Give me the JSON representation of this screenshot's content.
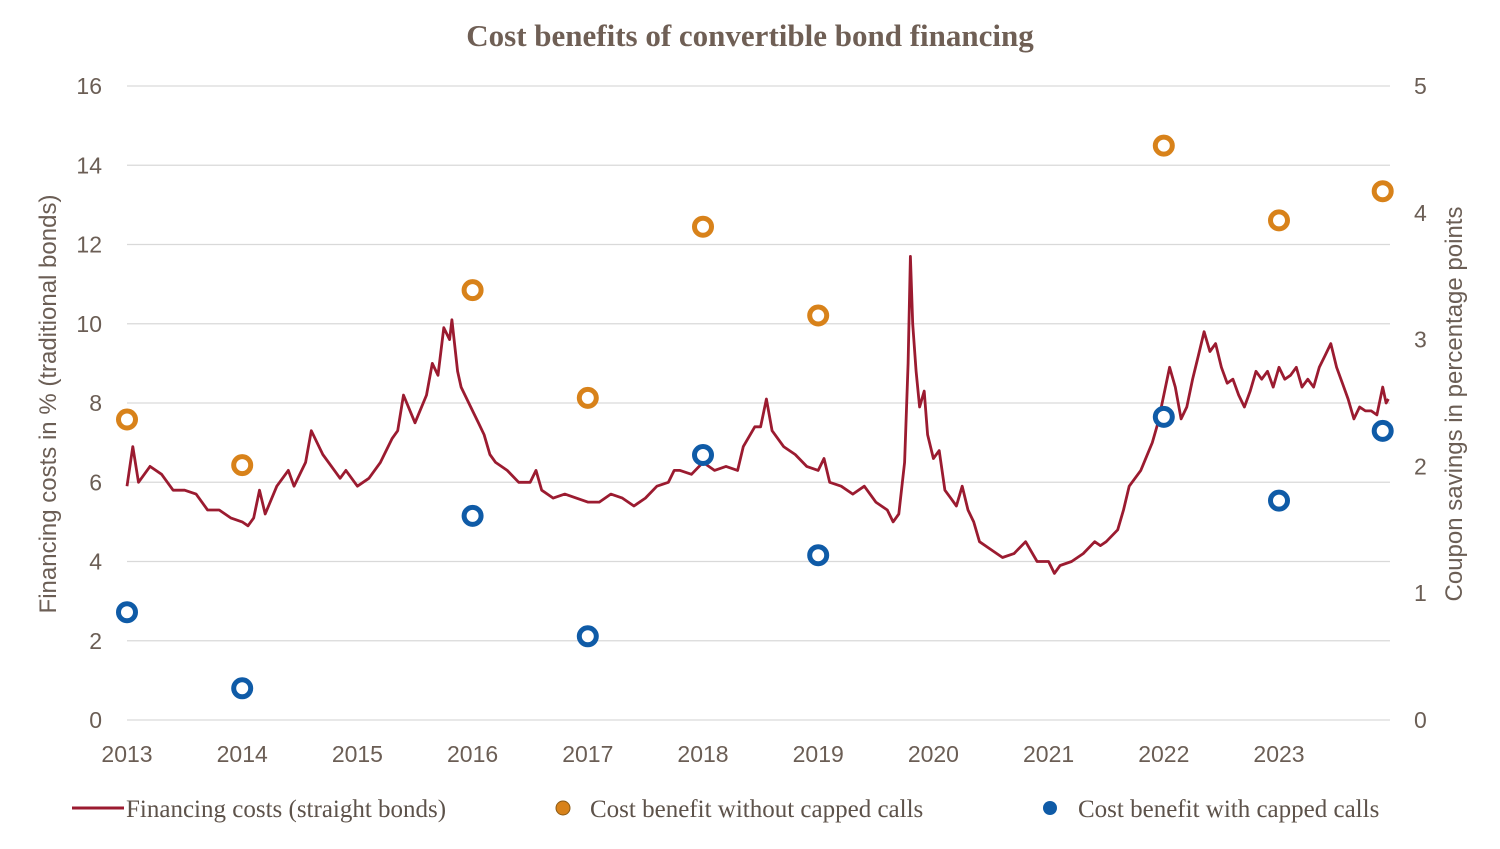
{
  "chart_data": {
    "type": "line",
    "title": "Cost benefits of convertible bond financing",
    "x_ticks": [
      "2013",
      "2014",
      "2015",
      "2016",
      "2017",
      "2018",
      "2019",
      "2020",
      "2021",
      "2022",
      "2023"
    ],
    "x_range": [
      2013,
      2024
    ],
    "y_left": {
      "label": "Financing costs in % (traditional bonds)",
      "range": [
        0,
        16
      ],
      "ticks": [
        "0",
        "2",
        "4",
        "6",
        "8",
        "10",
        "12",
        "14",
        "16"
      ]
    },
    "y_right": {
      "label": "Coupon savings in percentage points",
      "range": [
        0,
        5
      ],
      "ticks": [
        "0",
        "1",
        "2",
        "3",
        "4",
        "5"
      ]
    },
    "grid": true,
    "legend_position": "bottom",
    "series": [
      {
        "name": "Financing costs (straight bonds)",
        "kind": "line",
        "axis": "left",
        "color": "#9b1b30",
        "points": [
          [
            2013.0,
            5.9
          ],
          [
            2013.05,
            6.9
          ],
          [
            2013.1,
            6.0
          ],
          [
            2013.2,
            6.4
          ],
          [
            2013.3,
            6.2
          ],
          [
            2013.4,
            5.8
          ],
          [
            2013.5,
            5.8
          ],
          [
            2013.6,
            5.7
          ],
          [
            2013.7,
            5.3
          ],
          [
            2013.8,
            5.3
          ],
          [
            2013.9,
            5.1
          ],
          [
            2014.0,
            5.0
          ],
          [
            2014.05,
            4.9
          ],
          [
            2014.1,
            5.1
          ],
          [
            2014.15,
            5.8
          ],
          [
            2014.2,
            5.2
          ],
          [
            2014.3,
            5.9
          ],
          [
            2014.4,
            6.3
          ],
          [
            2014.45,
            5.9
          ],
          [
            2014.55,
            6.5
          ],
          [
            2014.6,
            7.3
          ],
          [
            2014.7,
            6.7
          ],
          [
            2014.8,
            6.3
          ],
          [
            2014.85,
            6.1
          ],
          [
            2014.9,
            6.3
          ],
          [
            2015.0,
            5.9
          ],
          [
            2015.1,
            6.1
          ],
          [
            2015.2,
            6.5
          ],
          [
            2015.3,
            7.1
          ],
          [
            2015.35,
            7.3
          ],
          [
            2015.4,
            8.2
          ],
          [
            2015.5,
            7.5
          ],
          [
            2015.6,
            8.2
          ],
          [
            2015.65,
            9.0
          ],
          [
            2015.7,
            8.7
          ],
          [
            2015.75,
            9.9
          ],
          [
            2015.8,
            9.6
          ],
          [
            2015.82,
            10.1
          ],
          [
            2015.87,
            8.8
          ],
          [
            2015.9,
            8.4
          ],
          [
            2016.0,
            7.8
          ],
          [
            2016.05,
            7.5
          ],
          [
            2016.1,
            7.2
          ],
          [
            2016.15,
            6.7
          ],
          [
            2016.2,
            6.5
          ],
          [
            2016.3,
            6.3
          ],
          [
            2016.4,
            6.0
          ],
          [
            2016.5,
            6.0
          ],
          [
            2016.55,
            6.3
          ],
          [
            2016.6,
            5.8
          ],
          [
            2016.7,
            5.6
          ],
          [
            2016.8,
            5.7
          ],
          [
            2016.9,
            5.6
          ],
          [
            2017.0,
            5.5
          ],
          [
            2017.1,
            5.5
          ],
          [
            2017.2,
            5.7
          ],
          [
            2017.3,
            5.6
          ],
          [
            2017.4,
            5.4
          ],
          [
            2017.5,
            5.6
          ],
          [
            2017.6,
            5.9
          ],
          [
            2017.7,
            6.0
          ],
          [
            2017.75,
            6.3
          ],
          [
            2017.8,
            6.3
          ],
          [
            2017.9,
            6.2
          ],
          [
            2018.0,
            6.5
          ],
          [
            2018.05,
            6.4
          ],
          [
            2018.1,
            6.3
          ],
          [
            2018.2,
            6.4
          ],
          [
            2018.3,
            6.3
          ],
          [
            2018.35,
            6.9
          ],
          [
            2018.45,
            7.4
          ],
          [
            2018.5,
            7.4
          ],
          [
            2018.55,
            8.1
          ],
          [
            2018.6,
            7.3
          ],
          [
            2018.7,
            6.9
          ],
          [
            2018.8,
            6.7
          ],
          [
            2018.9,
            6.4
          ],
          [
            2019.0,
            6.3
          ],
          [
            2019.05,
            6.6
          ],
          [
            2019.1,
            6.0
          ],
          [
            2019.2,
            5.9
          ],
          [
            2019.3,
            5.7
          ],
          [
            2019.4,
            5.9
          ],
          [
            2019.5,
            5.5
          ],
          [
            2019.6,
            5.3
          ],
          [
            2019.65,
            5.0
          ],
          [
            2019.7,
            5.2
          ],
          [
            2019.75,
            6.5
          ],
          [
            2019.78,
            9.0
          ],
          [
            2019.8,
            11.7
          ],
          [
            2019.82,
            10.0
          ],
          [
            2019.85,
            8.8
          ],
          [
            2019.88,
            7.9
          ],
          [
            2019.92,
            8.3
          ],
          [
            2019.95,
            7.2
          ],
          [
            2020.0,
            6.6
          ],
          [
            2020.05,
            6.8
          ],
          [
            2020.1,
            5.8
          ],
          [
            2020.15,
            5.6
          ],
          [
            2020.2,
            5.4
          ],
          [
            2020.25,
            5.9
          ],
          [
            2020.3,
            5.3
          ],
          [
            2020.35,
            5.0
          ],
          [
            2020.4,
            4.5
          ],
          [
            2020.5,
            4.3
          ],
          [
            2020.6,
            4.1
          ],
          [
            2020.7,
            4.2
          ],
          [
            2020.8,
            4.5
          ],
          [
            2020.9,
            4.0
          ],
          [
            2021.0,
            4.0
          ],
          [
            2021.05,
            3.7
          ],
          [
            2021.1,
            3.9
          ],
          [
            2021.2,
            4.0
          ],
          [
            2021.3,
            4.2
          ],
          [
            2021.4,
            4.5
          ],
          [
            2021.45,
            4.4
          ],
          [
            2021.5,
            4.5
          ],
          [
            2021.6,
            4.8
          ],
          [
            2021.65,
            5.3
          ],
          [
            2021.7,
            5.9
          ],
          [
            2021.8,
            6.3
          ],
          [
            2021.9,
            7.0
          ],
          [
            2021.95,
            7.5
          ],
          [
            2022.0,
            8.2
          ],
          [
            2022.05,
            8.9
          ],
          [
            2022.1,
            8.4
          ],
          [
            2022.15,
            7.6
          ],
          [
            2022.2,
            7.9
          ],
          [
            2022.25,
            8.6
          ],
          [
            2022.3,
            9.2
          ],
          [
            2022.35,
            9.8
          ],
          [
            2022.4,
            9.3
          ],
          [
            2022.45,
            9.5
          ],
          [
            2022.5,
            8.9
          ],
          [
            2022.55,
            8.5
          ],
          [
            2022.6,
            8.6
          ],
          [
            2022.65,
            8.2
          ],
          [
            2022.7,
            7.9
          ],
          [
            2022.75,
            8.3
          ],
          [
            2022.8,
            8.8
          ],
          [
            2022.85,
            8.6
          ],
          [
            2022.9,
            8.8
          ],
          [
            2022.95,
            8.4
          ],
          [
            2023.0,
            8.9
          ],
          [
            2023.05,
            8.6
          ],
          [
            2023.1,
            8.7
          ],
          [
            2023.15,
            8.9
          ],
          [
            2023.2,
            8.4
          ],
          [
            2023.25,
            8.6
          ],
          [
            2023.3,
            8.4
          ],
          [
            2023.35,
            8.9
          ],
          [
            2023.4,
            9.2
          ],
          [
            2023.45,
            9.5
          ],
          [
            2023.5,
            8.9
          ],
          [
            2023.55,
            8.5
          ],
          [
            2023.6,
            8.1
          ],
          [
            2023.65,
            7.6
          ],
          [
            2023.7,
            7.9
          ],
          [
            2023.75,
            7.8
          ],
          [
            2023.8,
            7.8
          ],
          [
            2023.85,
            7.7
          ],
          [
            2023.9,
            8.4
          ],
          [
            2023.93,
            8.0
          ],
          [
            2023.95,
            8.1
          ]
        ]
      },
      {
        "name": "Cost benefit without capped calls",
        "kind": "scatter",
        "axis": "right",
        "color": "#d8821a",
        "points": [
          [
            2013.0,
            2.37
          ],
          [
            2014.0,
            2.01
          ],
          [
            2016.0,
            3.39
          ],
          [
            2017.0,
            2.54
          ],
          [
            2018.0,
            3.89
          ],
          [
            2019.0,
            3.19
          ],
          [
            2022.0,
            4.53
          ],
          [
            2023.0,
            3.94
          ],
          [
            2023.9,
            4.17
          ]
        ]
      },
      {
        "name": "Cost benefit with capped calls",
        "kind": "scatter",
        "axis": "right",
        "color": "#0f5ba7",
        "points": [
          [
            2013.0,
            0.85
          ],
          [
            2014.0,
            0.25
          ],
          [
            2016.0,
            1.61
          ],
          [
            2017.0,
            0.66
          ],
          [
            2018.0,
            2.09
          ],
          [
            2019.0,
            1.3
          ],
          [
            2022.0,
            2.39
          ],
          [
            2023.0,
            1.73
          ],
          [
            2023.9,
            2.28
          ]
        ]
      }
    ]
  }
}
